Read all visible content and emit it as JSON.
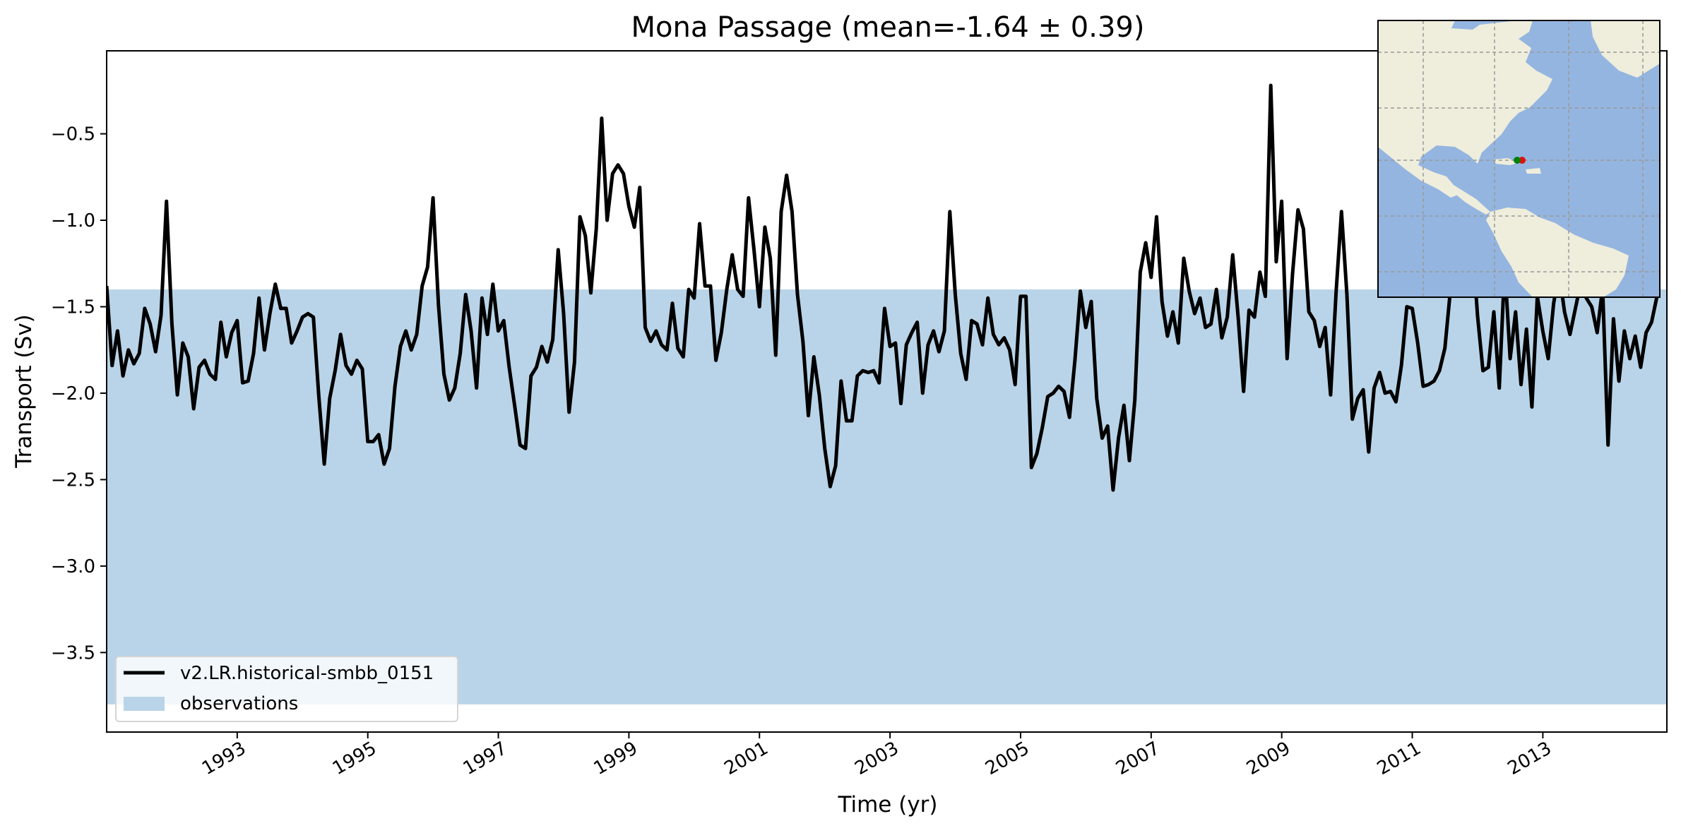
{
  "chart_data": {
    "type": "line",
    "title": "Mona Passage (mean=-1.64 ± 0.39)",
    "xlabel": "Time (yr)",
    "ylabel": "Transport (Sv)",
    "xlim": [
      1991.0,
      2014.9
    ],
    "ylim": [
      -3.96,
      -0.02
    ],
    "x_ticks": [
      1993,
      1995,
      1997,
      1999,
      2001,
      2003,
      2005,
      2007,
      2009,
      2011,
      2013
    ],
    "x_tick_labels": [
      "1993",
      "1995",
      "1997",
      "1999",
      "2001",
      "2003",
      "2005",
      "2007",
      "2009",
      "2011",
      "2013"
    ],
    "y_ticks": [
      -3.5,
      -3.0,
      -2.5,
      -2.0,
      -1.5,
      -1.0,
      -0.5
    ],
    "y_tick_labels": [
      "−3.5",
      "−3.0",
      "−2.5",
      "−2.0",
      "−1.5",
      "−1.0",
      "−0.5"
    ],
    "grid": false,
    "legend_position": "lower-left",
    "observations_band": {
      "name": "observations",
      "ymin": -3.8,
      "ymax": -1.4,
      "color": "#b9d4e8"
    },
    "series": [
      {
        "name": "v2.LR.historical-smbb_0151",
        "color": "#000000",
        "x_start": 1991.0,
        "x_step": 0.08333,
        "values": [
          -1.38,
          -1.84,
          -1.64,
          -1.9,
          -1.75,
          -1.83,
          -1.77,
          -1.51,
          -1.6,
          -1.76,
          -1.55,
          -0.89,
          -1.6,
          -2.01,
          -1.71,
          -1.79,
          -2.09,
          -1.85,
          -1.81,
          -1.89,
          -1.92,
          -1.59,
          -1.79,
          -1.65,
          -1.58,
          -1.94,
          -1.93,
          -1.77,
          -1.45,
          -1.75,
          -1.54,
          -1.37,
          -1.51,
          -1.51,
          -1.71,
          -1.64,
          -1.56,
          -1.54,
          -1.56,
          -2.02,
          -2.41,
          -2.03,
          -1.87,
          -1.66,
          -1.84,
          -1.89,
          -1.81,
          -1.86,
          -2.28,
          -2.28,
          -2.24,
          -2.41,
          -2.32,
          -1.96,
          -1.73,
          -1.64,
          -1.75,
          -1.66,
          -1.38,
          -1.27,
          -0.87,
          -1.49,
          -1.89,
          -2.04,
          -1.97,
          -1.77,
          -1.43,
          -1.64,
          -1.97,
          -1.45,
          -1.66,
          -1.37,
          -1.64,
          -1.58,
          -1.85,
          -2.07,
          -2.3,
          -2.32,
          -1.9,
          -1.85,
          -1.73,
          -1.82,
          -1.69,
          -1.17,
          -1.54,
          -2.11,
          -1.82,
          -0.98,
          -1.09,
          -1.42,
          -1.05,
          -0.41,
          -1.0,
          -0.73,
          -0.68,
          -0.73,
          -0.92,
          -1.04,
          -0.81,
          -1.62,
          -1.7,
          -1.64,
          -1.72,
          -1.75,
          -1.48,
          -1.74,
          -1.79,
          -1.4,
          -1.45,
          -1.02,
          -1.38,
          -1.38,
          -1.81,
          -1.65,
          -1.4,
          -1.2,
          -1.4,
          -1.44,
          -0.87,
          -1.17,
          -1.5,
          -1.04,
          -1.22,
          -1.78,
          -0.95,
          -0.74,
          -0.95,
          -1.43,
          -1.7,
          -2.13,
          -1.79,
          -2.01,
          -2.32,
          -2.54,
          -2.42,
          -1.93,
          -2.16,
          -2.16,
          -1.9,
          -1.87,
          -1.88,
          -1.87,
          -1.94,
          -1.51,
          -1.73,
          -1.71,
          -2.06,
          -1.72,
          -1.65,
          -1.59,
          -2.0,
          -1.72,
          -1.64,
          -1.76,
          -1.64,
          -0.95,
          -1.43,
          -1.77,
          -1.92,
          -1.58,
          -1.6,
          -1.72,
          -1.45,
          -1.66,
          -1.72,
          -1.68,
          -1.75,
          -1.95,
          -1.44,
          -1.44,
          -2.43,
          -2.35,
          -2.2,
          -2.02,
          -2.0,
          -1.96,
          -1.99,
          -2.14,
          -1.81,
          -1.41,
          -1.62,
          -1.47,
          -2.03,
          -2.26,
          -2.19,
          -2.56,
          -2.26,
          -2.07,
          -2.39,
          -2.04,
          -1.3,
          -1.13,
          -1.33,
          -0.98,
          -1.47,
          -1.67,
          -1.53,
          -1.71,
          -1.22,
          -1.41,
          -1.54,
          -1.45,
          -1.62,
          -1.6,
          -1.4,
          -1.68,
          -1.56,
          -1.2,
          -1.56,
          -1.99,
          -1.52,
          -1.56,
          -1.3,
          -1.44,
          -0.22,
          -1.24,
          -0.89,
          -1.8,
          -1.31,
          -0.94,
          -1.05,
          -1.53,
          -1.58,
          -1.73,
          -1.62,
          -2.01,
          -1.42,
          -0.95,
          -1.43,
          -2.15,
          -2.03,
          -1.98,
          -2.34,
          -1.97,
          -1.88,
          -2.0,
          -1.99,
          -2.05,
          -1.84,
          -1.5,
          -1.51,
          -1.71,
          -1.96,
          -1.95,
          -1.93,
          -1.87,
          -1.74,
          -1.41,
          -0.95,
          -1.16,
          -1.25,
          -1.1,
          -1.55,
          -1.87,
          -1.85,
          -1.53,
          -1.97,
          -1.26,
          -1.8,
          -1.53,
          -1.95,
          -1.63,
          -2.08,
          -1.44,
          -1.64,
          -1.8,
          -1.48,
          -1.3,
          -1.53,
          -1.66,
          -1.51,
          -1.36,
          -1.45,
          -1.5,
          -1.65,
          -1.39,
          -2.3,
          -1.57,
          -1.93,
          -1.64,
          -1.8,
          -1.67,
          -1.85,
          -1.65,
          -1.59,
          -1.44
        ]
      }
    ]
  },
  "inset_map": {
    "land_color": "#efeddc",
    "ocean_color": "#94b5e0",
    "markers": [
      {
        "label": "start",
        "color": "#008000"
      },
      {
        "label": "end",
        "color": "#e01010"
      }
    ]
  }
}
